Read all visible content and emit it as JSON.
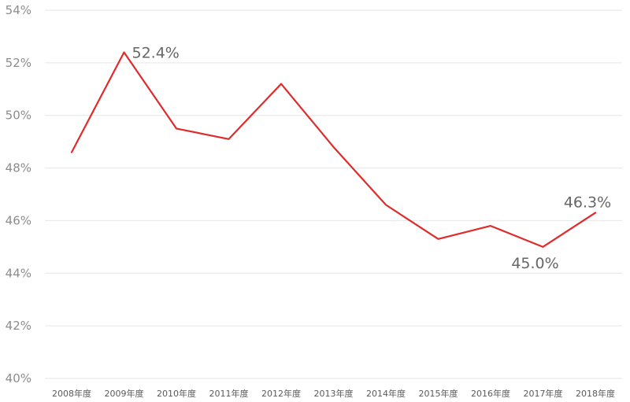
{
  "chart_data": {
    "type": "line",
    "title": "",
    "xlabel": "",
    "ylabel": "",
    "categories": [
      "2008年度",
      "2009年度",
      "2010年度",
      "2011年度",
      "2012年度",
      "2013年度",
      "2014年度",
      "2015年度",
      "2016年度",
      "2017年度",
      "2018年度"
    ],
    "series": [
      {
        "values": [
          48.6,
          52.4,
          49.5,
          49.1,
          51.2,
          48.8,
          46.6,
          45.3,
          45.8,
          45.0,
          46.3
        ],
        "color": "#e02b2b"
      }
    ],
    "ylim": [
      40,
      54
    ],
    "yticks": [
      40,
      42,
      44,
      46,
      48,
      50,
      52,
      54
    ],
    "ytick_labels": [
      "40%",
      "42%",
      "44%",
      "46%",
      "48%",
      "50%",
      "52%",
      "54%"
    ],
    "data_labels": [
      {
        "index": 1,
        "text": "52.4%",
        "placement": "right"
      },
      {
        "index": 9,
        "text": "45.0%",
        "placement": "below"
      },
      {
        "index": 10,
        "text": "46.3%",
        "placement": "above"
      }
    ],
    "grid": true,
    "legend": "none"
  }
}
